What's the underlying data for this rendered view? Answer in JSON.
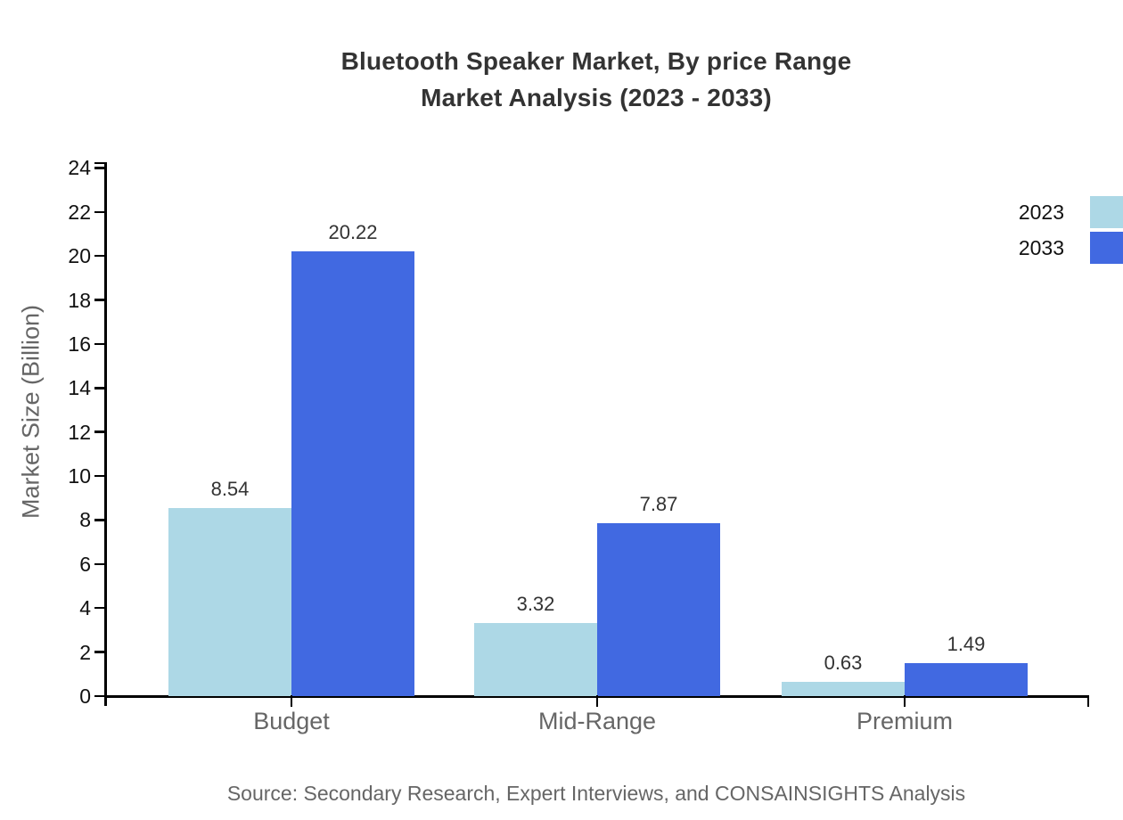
{
  "page": {
    "background": "#ffffff"
  },
  "chart_data": {
    "type": "bar",
    "title_line1": "Bluetooth Speaker Market, By price Range",
    "title_line2": "Market Analysis (2023 - 2033)",
    "ylabel": "Market Size (Billion)",
    "xlabel": "",
    "categories": [
      "Budget",
      "Mid-Range",
      "Premium"
    ],
    "series": [
      {
        "name": "2023",
        "color": "#ADD8E6",
        "values": [
          8.54,
          3.32,
          0.63
        ]
      },
      {
        "name": "2033",
        "color": "#4169E1",
        "values": [
          20.22,
          7.87,
          1.49
        ]
      }
    ],
    "ylim": [
      0,
      24.26
    ],
    "yticks": [
      0,
      2,
      4,
      6,
      8,
      10,
      12,
      14,
      16,
      18,
      20,
      22,
      24
    ],
    "grid": false,
    "legend_position": "top-right",
    "axis_color": "#000000",
    "text_colors": {
      "title": "#333333",
      "tick_labels": "#111111",
      "category_labels": "#666666",
      "value_labels": "#333333",
      "source": "#666666"
    },
    "source": "Source: Secondary Research, Expert Interviews, and CONSAINSIGHTS Analysis"
  }
}
